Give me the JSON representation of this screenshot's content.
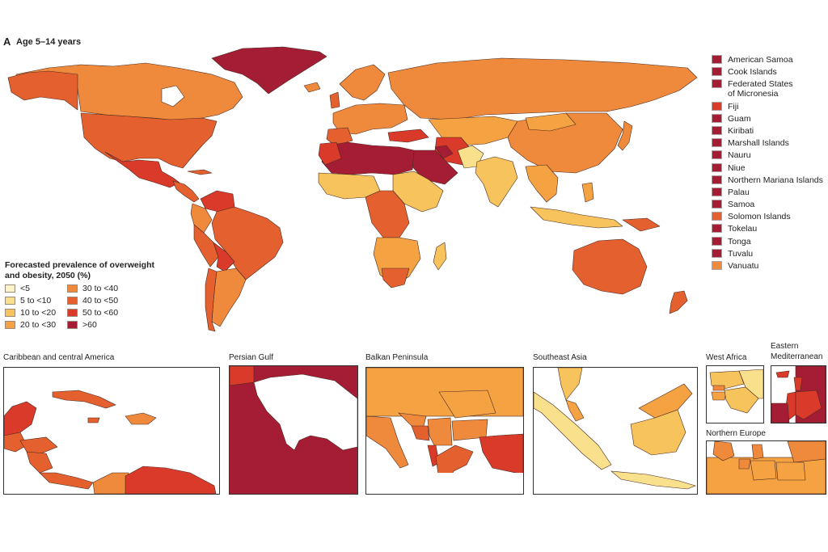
{
  "panel": {
    "letter": "A",
    "title": "Age 5–14 years"
  },
  "scale_legend": {
    "title_line1": "Forecasted prevalence of overweight",
    "title_line2": "and obesity, 2050 (%)",
    "bins": [
      {
        "label": "<5",
        "color": "#fbf4c8"
      },
      {
        "label": "5 to <10",
        "color": "#f8e08c"
      },
      {
        "label": "10 to <20",
        "color": "#f6c35d"
      },
      {
        "label": "20 to <30",
        "color": "#f5a243"
      },
      {
        "label": "30 to <40",
        "color": "#ef8a3c"
      },
      {
        "label": "40 to <50",
        "color": "#e4612f"
      },
      {
        "label": "50 to <60",
        "color": "#d93a2a"
      },
      {
        "label": ">60",
        "color": "#a51d35"
      }
    ]
  },
  "small_states_legend": [
    {
      "label": "American Samoa",
      "color": "#a51d35"
    },
    {
      "label": "Cook Islands",
      "color": "#a51d35"
    },
    {
      "label": "Federated States",
      "label2": "of Micronesia",
      "color": "#a51d35"
    },
    {
      "label": "Fiji",
      "color": "#d93a2a"
    },
    {
      "label": "Guam",
      "color": "#a51d35"
    },
    {
      "label": "Kiribati",
      "color": "#a51d35"
    },
    {
      "label": "Marshall Islands",
      "color": "#a51d35"
    },
    {
      "label": "Nauru",
      "color": "#a51d35"
    },
    {
      "label": "Niue",
      "color": "#a51d35"
    },
    {
      "label": "Northern Mariana Islands",
      "color": "#a51d35"
    },
    {
      "label": "Palau",
      "color": "#a51d35"
    },
    {
      "label": "Samoa",
      "color": "#a51d35"
    },
    {
      "label": "Solomon Islands",
      "color": "#e4612f"
    },
    {
      "label": "Tokelau",
      "color": "#a51d35"
    },
    {
      "label": "Tonga",
      "color": "#a51d35"
    },
    {
      "label": "Tuvalu",
      "color": "#a51d35"
    },
    {
      "label": "Vanuatu",
      "color": "#ef8a3c"
    }
  ],
  "insets": {
    "caribbean": "Caribbean and central America",
    "persian_gulf": "Persian Gulf",
    "balkan": "Balkan Peninsula",
    "southeast_asia": "Southeast Asia",
    "west_africa": "West Africa",
    "eastern_med_line1": "Eastern",
    "eastern_med_line2": "Mediterranean",
    "northern_europe": "Northern Europe"
  }
}
